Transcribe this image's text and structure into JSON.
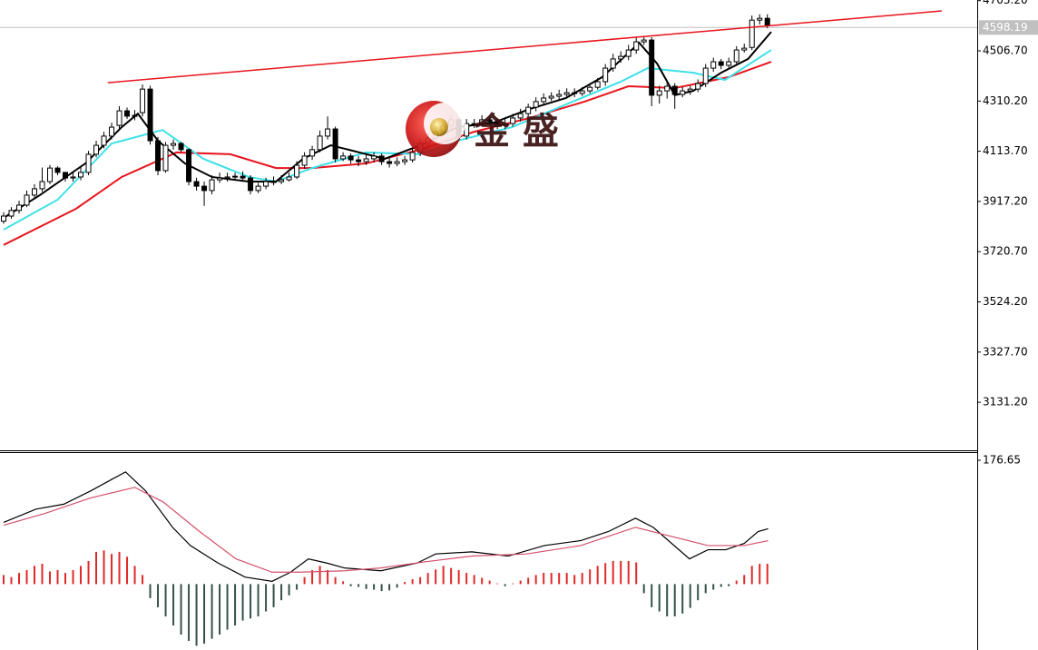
{
  "chart_data": [
    {
      "type": "candlestick",
      "xlim": [
        -0.47,
        126.2
      ],
      "ylim": [
        2943.4,
        4705.7
      ],
      "yticks": [
        {
          "value": 4703.2,
          "label": "4703.20"
        },
        {
          "value": 4506.7,
          "label": "4506.70"
        },
        {
          "value": 4310.2,
          "label": "4310.20"
        },
        {
          "value": 4113.7,
          "label": "4113.70"
        },
        {
          "value": 3917.2,
          "label": "3917.20"
        },
        {
          "value": 3720.7,
          "label": "3720.70"
        },
        {
          "value": 3524.2,
          "label": "3524.20"
        },
        {
          "value": 3327.7,
          "label": "3327.70"
        },
        {
          "value": 3131.2,
          "label": "3131.20"
        }
      ],
      "up_color": "#ffffff",
      "down_color": "#000000",
      "open": [
        3840,
        3860,
        3882,
        3903,
        3942,
        3967,
        3995,
        4048,
        4031,
        4009,
        4013,
        4031,
        4102,
        4137,
        4173,
        4215,
        4272,
        4251,
        4265,
        4357,
        4155,
        4038,
        4137,
        4144,
        4120,
        3995,
        3977,
        3960,
        4002,
        4009,
        4013,
        4016,
        4009,
        3960,
        3977,
        3995,
        3995,
        4002,
        4013,
        4059,
        4095,
        4120,
        4173,
        4201,
        4084,
        4095,
        4080,
        4073,
        4084,
        4095,
        4073,
        4066,
        4073,
        4080,
        4109,
        4144,
        4166,
        4190,
        4215,
        4237,
        4173,
        4222,
        4222,
        4237,
        4230,
        4215,
        4222,
        4244,
        4261,
        4286,
        4308,
        4322,
        4329,
        4336,
        4343,
        4340,
        4350,
        4364,
        4386,
        4439,
        4475,
        4485,
        4510,
        4542,
        4549,
        4333,
        4350,
        4368,
        4336,
        4350,
        4357,
        4379,
        4439,
        4464,
        4450,
        4464,
        4510,
        4520,
        4627,
        4634
      ],
      "high": [
        3875,
        3895,
        3920,
        3960,
        3985,
        4050,
        4060,
        4055,
        4030,
        4030,
        4050,
        4115,
        4155,
        4190,
        4225,
        4290,
        4285,
        4275,
        4375,
        4370,
        4170,
        4150,
        4160,
        4150,
        4125,
        4010,
        3995,
        4020,
        4030,
        4030,
        4030,
        4035,
        4020,
        3990,
        4010,
        4015,
        4020,
        4030,
        4075,
        4110,
        4135,
        4195,
        4250,
        4210,
        4110,
        4105,
        4095,
        4100,
        4110,
        4105,
        4090,
        4090,
        4095,
        4125,
        4160,
        4185,
        4210,
        4230,
        4255,
        4245,
        4240,
        4240,
        4255,
        4250,
        4240,
        4240,
        4260,
        4280,
        4300,
        4325,
        4340,
        4345,
        4355,
        4360,
        4360,
        4365,
        4380,
        4400,
        4455,
        4495,
        4505,
        4530,
        4560,
        4565,
        4560,
        4370,
        4385,
        4380,
        4365,
        4370,
        4395,
        4455,
        4480,
        4475,
        4480,
        4525,
        4535,
        4645,
        4650,
        4650
      ],
      "low": [
        3830,
        3850,
        3870,
        3895,
        3930,
        3955,
        3985,
        4020,
        3995,
        3995,
        4000,
        4020,
        4090,
        4125,
        4160,
        4200,
        4240,
        4235,
        4250,
        4140,
        4020,
        4030,
        4120,
        4110,
        3980,
        3960,
        3900,
        3945,
        3990,
        3995,
        4000,
        3995,
        3945,
        3950,
        3965,
        3980,
        3985,
        3995,
        4005,
        4045,
        4080,
        4110,
        4160,
        4070,
        4075,
        4065,
        4055,
        4060,
        4070,
        4060,
        4050,
        4055,
        4060,
        4070,
        4095,
        4130,
        4155,
        4175,
        4200,
        4160,
        4160,
        4205,
        4210,
        4215,
        4200,
        4200,
        4210,
        4230,
        4250,
        4270,
        4295,
        4310,
        4315,
        4325,
        4325,
        4330,
        4340,
        4355,
        4370,
        4425,
        4460,
        4470,
        4495,
        4530,
        4290,
        4300,
        4320,
        4280,
        4325,
        4335,
        4345,
        4365,
        4425,
        4435,
        4440,
        4450,
        4500,
        4510,
        4610,
        4595
      ],
      "close": [
        3860,
        3882,
        3903,
        3942,
        3967,
        3995,
        4048,
        4031,
        4009,
        4013,
        4031,
        4102,
        4137,
        4173,
        4208,
        4272,
        4251,
        4254,
        4357,
        4155,
        4038,
        4137,
        4144,
        4120,
        3995,
        3977,
        3960,
        4002,
        4009,
        4013,
        4016,
        4009,
        3960,
        3977,
        3995,
        3995,
        4002,
        4013,
        4059,
        4095,
        4120,
        4173,
        4201,
        4084,
        4095,
        4080,
        4073,
        4084,
        4095,
        4073,
        4066,
        4073,
        4080,
        4109,
        4144,
        4166,
        4190,
        4215,
        4237,
        4173,
        4222,
        4222,
        4237,
        4230,
        4215,
        4222,
        4244,
        4261,
        4286,
        4308,
        4322,
        4329,
        4336,
        4343,
        4340,
        4350,
        4364,
        4386,
        4439,
        4475,
        4485,
        4510,
        4542,
        4549,
        4333,
        4350,
        4368,
        4336,
        4350,
        4357,
        4379,
        4439,
        4464,
        4450,
        4464,
        4510,
        4517,
        4627,
        4634,
        4605
      ],
      "series": [
        {
          "color": "#e8141e",
          "x": [
            0,
            9.4,
            15.3,
            22.4,
            29.4,
            35.3,
            40,
            47,
            54,
            61,
            68.2,
            75.3,
            81,
            87,
            94,
            99.5
          ],
          "values": [
            3747,
            3889,
            4013,
            4109,
            4102,
            4048,
            4048,
            4066,
            4120,
            4190,
            4244,
            4308,
            4368,
            4361,
            4404,
            4464
          ]
        },
        {
          "color": "#3ee0e8",
          "x": [
            0,
            7,
            14,
            20.6,
            25.9,
            31.8,
            35.3,
            40,
            47,
            54,
            58.8,
            65.9,
            72.9,
            80,
            83.5,
            89.4,
            93.5,
            99.5
          ],
          "values": [
            3807,
            3924,
            4144,
            4197,
            4084,
            4013,
            3995,
            4048,
            4109,
            4102,
            4155,
            4208,
            4297,
            4386,
            4439,
            4421,
            4393,
            4510
          ]
        },
        {
          "color": "#000000",
          "x": [
            0,
            4.7,
            10.6,
            15.3,
            17.4,
            20,
            23.5,
            27,
            31.8,
            35.3,
            38.8,
            42.4,
            44.7,
            49.4,
            54,
            58.8,
            63.5,
            68.2,
            72.9,
            77.6,
            82.4,
            84.7,
            87,
            89.4,
            93,
            96.5,
            99.5
          ],
          "values": [
            3853,
            3942,
            4066,
            4208,
            4261,
            4155,
            4066,
            4013,
            3995,
            3995,
            4084,
            4137,
            4120,
            4084,
            4137,
            4208,
            4226,
            4279,
            4322,
            4404,
            4538,
            4457,
            4333,
            4350,
            4421,
            4475,
            4581
          ]
        }
      ],
      "trendline": {
        "color": "#e8141e",
        "x": [
          13.5,
          121.6
        ],
        "values": [
          4382,
          4663
        ]
      },
      "last_price": 4598.19,
      "last_price_color": "#c0c0c0",
      "logo_text": "金 盛"
    },
    {
      "type": "macd",
      "xlim": [
        -0.47,
        126.2
      ],
      "ylim": [
        -94,
        187
      ],
      "yticks": [
        176.65
      ],
      "histogram": {
        "up_color": "#e02828",
        "down_color": "#34504a",
        "values": [
          13,
          10,
          16,
          20,
          26,
          29,
          18,
          20,
          16,
          20,
          26,
          33,
          46,
          48,
          43,
          46,
          39,
          26,
          13,
          -20,
          -33,
          -46,
          -59,
          -72,
          -81,
          -88,
          -85,
          -78,
          -72,
          -65,
          -59,
          -52,
          -49,
          -46,
          -39,
          -33,
          -23,
          -16,
          -8,
          10,
          20,
          26,
          20,
          10,
          4,
          -3,
          -4,
          -7,
          -8,
          -10,
          -9,
          -5,
          3,
          7,
          10,
          16,
          21,
          26,
          23,
          20,
          16,
          13,
          9,
          5,
          1,
          -3,
          1,
          5,
          9,
          13,
          16,
          16,
          16,
          16,
          13,
          16,
          21,
          26,
          30,
          33,
          33,
          33,
          31,
          -13,
          -33,
          -39,
          -46,
          -46,
          -42,
          -34,
          -23,
          -13,
          -8,
          -4,
          -3,
          5,
          13,
          26,
          29,
          29
        ]
      },
      "series": [
        {
          "color": "#000000",
          "x": [
            0,
            4.2,
            7.8,
            11.3,
            15.8,
            18.4,
            21.9,
            24.2,
            27.8,
            31.3,
            34.8,
            37.2,
            39.5,
            41.9,
            44.2,
            48.9,
            53.6,
            56,
            60.7,
            65.4,
            70.1,
            74.8,
            78.4,
            81.9,
            84.2,
            88.9,
            91.3,
            93.6,
            96,
            97.8,
            99.1
          ],
          "values": [
            88,
            107,
            114,
            133,
            160,
            133,
            81,
            55,
            30,
            10,
            4,
            17,
            36,
            30,
            23,
            19,
            30,
            43,
            46,
            40,
            55,
            62,
            75,
            94,
            81,
            36,
            49,
            49,
            58,
            75,
            79
          ]
        },
        {
          "color": "#d4506a",
          "x": [
            0,
            5.4,
            11.3,
            17,
            20.7,
            25.4,
            30.1,
            34.8,
            38.4,
            44.2,
            48.9,
            54.8,
            60.7,
            67.8,
            74.8,
            81.9,
            86.6,
            91.3,
            96,
            99.1
          ],
          "values": [
            84,
            101,
            123,
            138,
            117,
            75,
            36,
            17,
            17,
            19,
            23,
            32,
            40,
            43,
            55,
            81,
            68,
            55,
            55,
            62
          ]
        }
      ]
    }
  ]
}
